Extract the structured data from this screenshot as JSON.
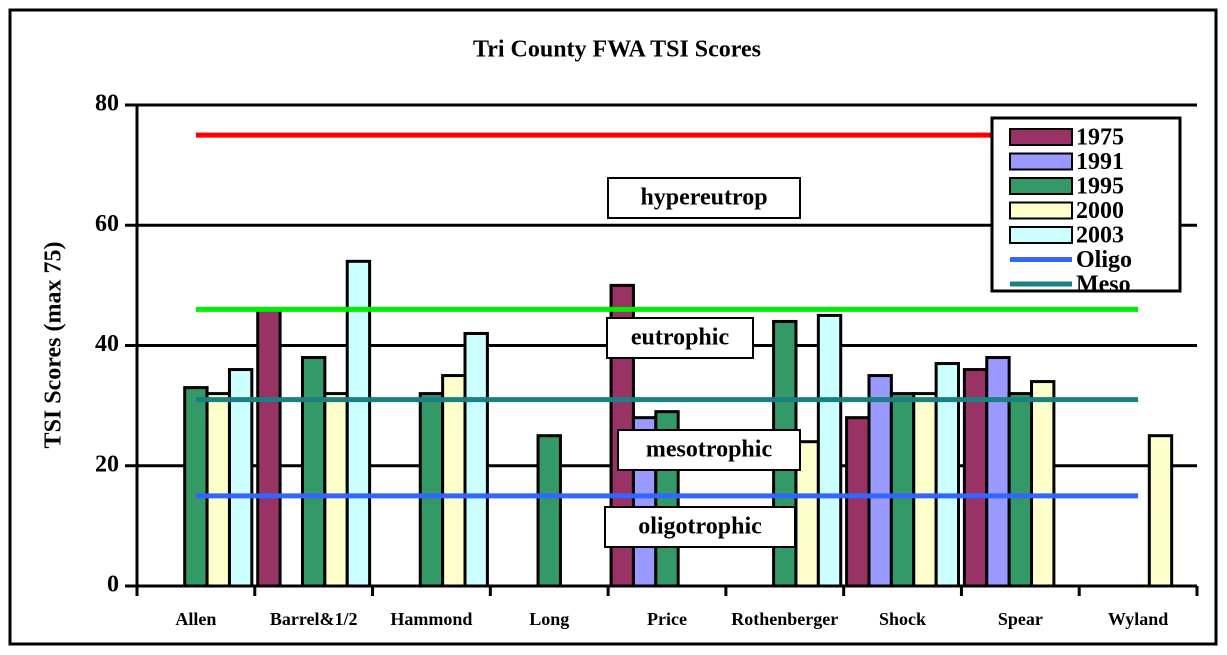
{
  "chart_data": {
    "type": "bar",
    "title": "Tri County FWA TSI Scores",
    "y_label": "TSI Scores (max 75)",
    "categories": [
      "Allen",
      "Barrel&1/2",
      "Hammond",
      "Long",
      "Price",
      "Rothenberger",
      "Shock",
      "Spear",
      "Wyland"
    ],
    "series": [
      {
        "name": "1975",
        "color": "#993366",
        "values": [
          null,
          46,
          null,
          null,
          50,
          null,
          28,
          36,
          null
        ]
      },
      {
        "name": "1991",
        "color": "#9999ff",
        "values": [
          null,
          null,
          null,
          null,
          28,
          null,
          35,
          38,
          null
        ]
      },
      {
        "name": "1995",
        "color": "#339966",
        "values": [
          33,
          38,
          32,
          25,
          29,
          44,
          32,
          32,
          null
        ]
      },
      {
        "name": "2000",
        "color": "#ffffcc",
        "values": [
          32,
          32,
          35,
          null,
          null,
          24,
          32,
          34,
          25
        ]
      },
      {
        "name": "2003",
        "color": "#ccffff",
        "values": [
          36,
          54,
          42,
          null,
          null,
          45,
          37,
          null,
          null
        ]
      },
      {
        "name": "Oligo",
        "type": "line",
        "color": "#3366ff",
        "values": [
          15,
          15,
          15,
          15,
          15,
          15,
          15,
          15,
          15
        ]
      },
      {
        "name": "Meso",
        "type": "line",
        "color": "#1a8080",
        "values": [
          31,
          31,
          31,
          31,
          31,
          31,
          31,
          31,
          31
        ]
      }
    ],
    "lines": [
      {
        "color": "#ff0000",
        "values": [
          75,
          75,
          75,
          75,
          75,
          75,
          75,
          75,
          75
        ]
      },
      {
        "color": "#00ee00",
        "values": [
          46,
          46,
          46,
          46,
          46,
          46,
          46,
          46,
          46
        ]
      }
    ],
    "annotations": [
      "hypereutrop",
      "eutrophic",
      "mesotrophic",
      "oligotrophic"
    ],
    "ylim": [
      0,
      80
    ],
    "yticks": [
      0,
      20,
      40,
      60,
      80
    ],
    "grid": true,
    "legend": "top-right"
  }
}
